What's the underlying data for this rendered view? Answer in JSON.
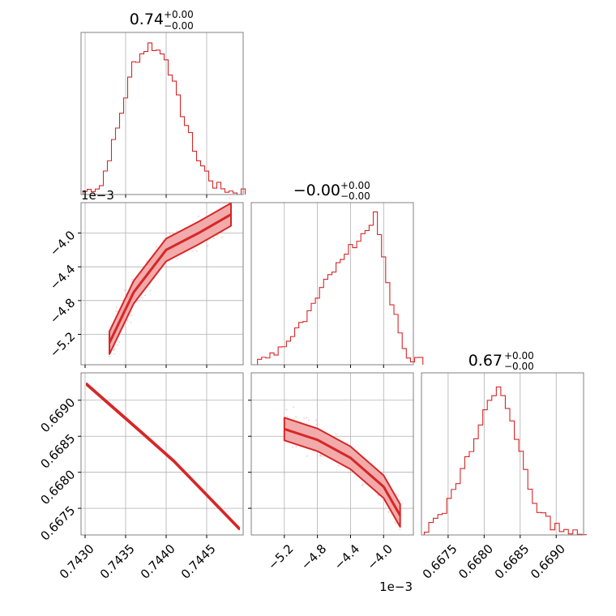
{
  "chart_data": [
    {
      "type": "histogram",
      "panel": "diag-0",
      "title": {
        "value": "0.74",
        "plus": "+0.00",
        "minus": "−0.00"
      },
      "xlim": [
        0.74295,
        0.74495
      ],
      "bins": [
        0.743,
        0.7432,
        0.7434,
        0.7436,
        0.7438,
        0.744,
        0.7442,
        0.7444,
        0.7446,
        0.7448
      ],
      "counts": [
        2,
        6,
        42,
        84,
        96,
        88,
        52,
        22,
        6,
        2
      ]
    },
    {
      "type": "scatter+contour",
      "panel": "pair-1-0",
      "xlim": [
        0.74295,
        0.74495
      ],
      "ylim": [
        -0.00556,
        -0.00364
      ],
      "ytick_values": [
        -0.004,
        -0.0044,
        -0.0048,
        -0.0052
      ],
      "ytick_labels": [
        "−4.0",
        "−4.4",
        "−4.8",
        "−5.2"
      ],
      "offset_text": "1e−3",
      "trend": [
        [
          0.7433,
          -0.0053
        ],
        [
          0.7436,
          -0.0047
        ],
        [
          0.744,
          -0.0042
        ],
        [
          0.7444,
          -0.004
        ],
        [
          0.7448,
          -0.00378
        ]
      ]
    },
    {
      "type": "histogram",
      "panel": "diag-1",
      "title": {
        "value": "−0.00",
        "plus": "+0.00",
        "minus": "−0.00"
      },
      "xlim": [
        -0.0056,
        -0.00364
      ],
      "bins": [
        -0.0055,
        -0.0053,
        -0.0051,
        -0.0049,
        -0.0047,
        -0.0045,
        -0.0043,
        -0.0041,
        -0.0039,
        -0.0037
      ],
      "counts": [
        2,
        8,
        18,
        32,
        52,
        70,
        80,
        96,
        40,
        4
      ]
    },
    {
      "type": "scatter+contour",
      "panel": "pair-2-0",
      "xlim": [
        0.74295,
        0.74495
      ],
      "ylim": [
        0.66713,
        0.66938
      ],
      "xtick_values": [
        0.743,
        0.7435,
        0.744,
        0.7445
      ],
      "xtick_labels": [
        "0.7430",
        "0.7435",
        "0.7440",
        "0.7445"
      ],
      "ytick_values": [
        0.669,
        0.6685,
        0.668,
        0.6675
      ],
      "ytick_labels": [
        "0.6690",
        "0.6685",
        "0.6680",
        "0.6675"
      ],
      "trend": [
        [
          0.74302,
          0.66922
        ],
        [
          0.7437,
          0.66855
        ],
        [
          0.7441,
          0.66815
        ],
        [
          0.7449,
          0.66722
        ]
      ]
    },
    {
      "type": "scatter+contour",
      "panel": "pair-2-1",
      "xlim": [
        -0.0056,
        -0.00364
      ],
      "ylim": [
        0.66713,
        0.66938
      ],
      "xtick_values": [
        -0.0052,
        -0.0048,
        -0.0044,
        -0.004
      ],
      "xtick_labels": [
        "−5.2",
        "−4.8",
        "−4.4",
        "−4.0"
      ],
      "offset_text": "1e−3",
      "trend": [
        [
          -0.0052,
          0.6686
        ],
        [
          -0.0048,
          0.66845
        ],
        [
          -0.0044,
          0.6682
        ],
        [
          -0.004,
          0.6678
        ],
        [
          -0.0038,
          0.6674
        ]
      ]
    },
    {
      "type": "histogram",
      "panel": "diag-2",
      "title": {
        "value": "0.67",
        "plus": "+0.00",
        "minus": "−0.00"
      },
      "xlim": [
        0.66713,
        0.66938
      ],
      "xtick_values": [
        0.6675,
        0.668,
        0.6685,
        0.669
      ],
      "xtick_labels": [
        "0.6675",
        "0.6680",
        "0.6685",
        "0.6690"
      ],
      "bins": [
        0.6672,
        0.66745,
        0.6677,
        0.66795,
        0.6682,
        0.66845,
        0.6687,
        0.66895,
        0.6692
      ],
      "counts": [
        3,
        14,
        40,
        72,
        96,
        64,
        20,
        6,
        2
      ]
    }
  ],
  "style": {
    "color": "#d62728",
    "fill_color": "#f2aaaa",
    "grid_color": "#b0b0b0",
    "frame_color": "#808080"
  }
}
